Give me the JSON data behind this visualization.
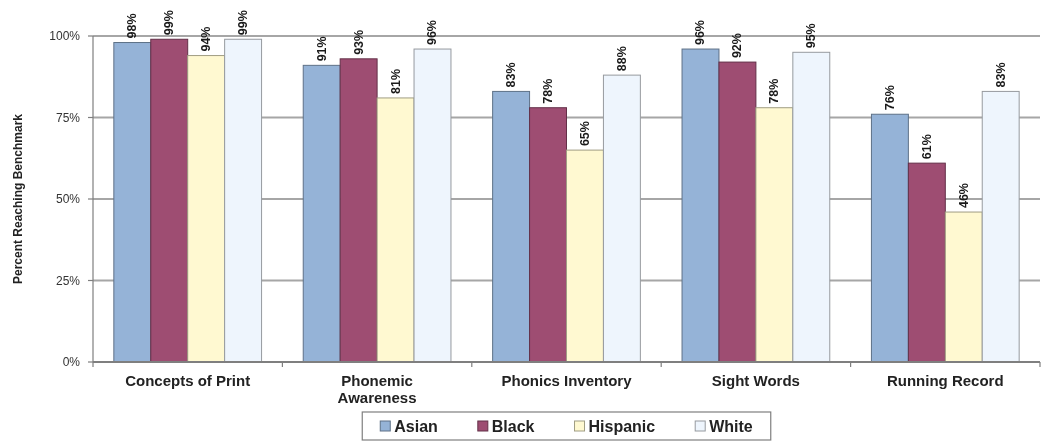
{
  "chart_data": {
    "type": "bar",
    "ylabel": "Percent Reaching Benchmark",
    "categories": [
      "Concepts of Print",
      "Phonemic Awareness",
      "Phonics Inventory",
      "Sight Words",
      "Running Record"
    ],
    "series": [
      {
        "name": "Asian",
        "color": "#95b3d7",
        "values": [
          98,
          91,
          83,
          96,
          76
        ],
        "value_labels": [
          "98%",
          "91%",
          "83%",
          "96%",
          "76%"
        ]
      },
      {
        "name": "Black",
        "color": "#9e4d72",
        "values": [
          99,
          93,
          78,
          92,
          61
        ],
        "value_labels": [
          "99%",
          "93%",
          "78%",
          "92%",
          "61%"
        ]
      },
      {
        "name": "Hispanic",
        "color": "#fff9d1",
        "values": [
          94,
          81,
          65,
          78,
          46
        ],
        "value_labels": [
          "94%",
          "81%",
          "65%",
          "78%",
          "46%"
        ]
      },
      {
        "name": "White",
        "color": "#eef5fd",
        "values": [
          99,
          96,
          88,
          95,
          83
        ],
        "value_labels": [
          "99%",
          "96%",
          "88%",
          "95%",
          "83%"
        ]
      }
    ],
    "ylim": [
      0,
      100
    ],
    "yticks": [
      {
        "value": 0,
        "label": "0%"
      },
      {
        "value": 25,
        "label": "25%"
      },
      {
        "value": 50,
        "label": "50%"
      },
      {
        "value": 75,
        "label": "75%"
      },
      {
        "value": 100,
        "label": "100%"
      }
    ],
    "grid": "y",
    "legend": "bottom"
  }
}
